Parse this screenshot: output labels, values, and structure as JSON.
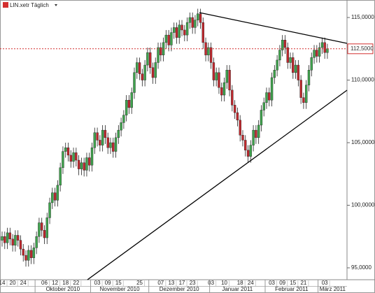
{
  "chart_data": {
    "type": "candlestick",
    "title": "LIN.xetr Täglich",
    "up_color": "#3fa34d",
    "down_color": "#c0282d",
    "ylim": [
      94.05,
      116.4
    ],
    "yticks": [
      {
        "value": 95,
        "label": "95,0000"
      },
      {
        "value": 100,
        "label": "100,0000"
      },
      {
        "value": 105,
        "label": "105,0000"
      },
      {
        "value": 110,
        "label": "110,0000"
      },
      {
        "value": 115,
        "label": "115,0000"
      }
    ],
    "last_price": {
      "value": 112.5,
      "label": "112,5000"
    },
    "categories": [
      "14",
      null,
      null,
      null,
      "20",
      null,
      null,
      null,
      "24",
      null,
      null,
      null,
      null,
      null,
      null,
      null,
      "06",
      null,
      null,
      null,
      "12",
      null,
      null,
      null,
      "18",
      null,
      null,
      null,
      "22",
      null,
      null,
      null,
      null,
      null,
      null,
      null,
      "03",
      null,
      null,
      null,
      "09",
      null,
      null,
      null,
      "15",
      null,
      null,
      null,
      null,
      null,
      null,
      null,
      "25",
      null,
      null,
      null,
      null,
      null,
      null,
      null,
      "07",
      null,
      null,
      null,
      "13",
      null,
      null,
      null,
      "17",
      null,
      null,
      null,
      "23",
      null,
      null,
      null,
      null,
      null,
      null,
      "03",
      null,
      null,
      null,
      null,
      "10",
      null,
      null,
      null,
      null,
      null,
      "18",
      null,
      null,
      null,
      "24",
      null,
      null,
      null,
      null,
      null,
      null,
      null,
      "03",
      null,
      null,
      null,
      "09",
      null,
      null,
      null,
      "15",
      null,
      null,
      null,
      "21",
      null,
      null,
      null,
      null,
      null,
      null,
      null,
      "03",
      null
    ],
    "months": [
      {
        "value": 13,
        "label": "Oktober 2010"
      },
      {
        "value": 34,
        "label": "November 2010"
      },
      {
        "value": 56,
        "label": "Dezember 2010"
      },
      {
        "value": 79,
        "label": "Januar 2011"
      },
      {
        "value": 100,
        "label": "Februar 2011"
      },
      {
        "value": 120,
        "label": "März 2011"
      }
    ],
    "open": [
      97.2,
      97.5,
      97.0,
      97.8,
      97.3,
      96.8,
      97.6,
      97.2,
      96.5,
      96.0,
      95.6,
      96.4,
      95.8,
      96.6,
      97.5,
      98.6,
      98.0,
      97.4,
      99.0,
      100.2,
      101.0,
      100.4,
      101.6,
      103.0,
      104.3,
      104.6,
      104.0,
      103.5,
      104.2,
      103.6,
      102.9,
      103.4,
      102.8,
      103.8,
      103.2,
      104.6,
      105.8,
      105.2,
      104.8,
      106.0,
      105.4,
      104.6,
      105.0,
      104.3,
      105.4,
      106.0,
      106.6,
      107.2,
      108.4,
      107.8,
      109.0,
      110.6,
      111.4,
      110.5,
      110.0,
      111.2,
      112.2,
      111.0,
      110.2,
      111.4,
      112.6,
      112.0,
      113.0,
      113.6,
      112.8,
      113.8,
      114.2,
      113.4,
      114.4,
      114.0,
      113.6,
      114.6,
      115.0,
      114.2,
      114.8,
      115.3,
      114.6,
      113.0,
      112.0,
      112.6,
      111.4,
      110.0,
      110.6,
      109.4,
      108.8,
      109.8,
      110.8,
      109.2,
      108.0,
      107.4,
      106.8,
      105.6,
      105.2,
      104.4,
      103.9,
      104.8,
      106.0,
      105.4,
      106.4,
      107.6,
      108.2,
      109.0,
      108.4,
      110.2,
      110.8,
      111.6,
      112.4,
      113.2,
      112.6,
      111.4,
      111.8,
      110.6,
      111.2,
      110.0,
      108.6,
      108.2,
      109.6,
      110.8,
      111.8,
      112.4,
      111.9,
      112.6,
      113.0,
      112.2
    ],
    "high": [
      97.9,
      97.9,
      98.2,
      98.2,
      97.7,
      98.0,
      98.0,
      97.6,
      96.9,
      96.4,
      96.8,
      96.8,
      97.0,
      97.9,
      99.0,
      99.0,
      98.4,
      99.4,
      100.6,
      101.4,
      101.4,
      102.0,
      103.4,
      104.7,
      105.0,
      105.0,
      104.4,
      104.6,
      104.6,
      104.0,
      103.8,
      103.8,
      104.2,
      104.2,
      105.0,
      106.2,
      106.2,
      105.6,
      106.4,
      106.4,
      105.8,
      105.4,
      105.4,
      105.8,
      106.4,
      107.0,
      107.6,
      108.8,
      108.8,
      109.4,
      111.0,
      111.8,
      111.8,
      110.9,
      111.6,
      112.6,
      112.6,
      111.4,
      111.8,
      113.0,
      113.0,
      113.4,
      114.0,
      114.0,
      114.2,
      114.6,
      114.6,
      114.8,
      114.8,
      114.4,
      115.0,
      115.4,
      115.4,
      115.2,
      115.7,
      115.7,
      115.0,
      113.4,
      113.0,
      113.0,
      111.8,
      111.0,
      111.0,
      109.8,
      110.2,
      111.2,
      111.2,
      109.6,
      108.4,
      107.8,
      107.2,
      106.0,
      105.6,
      104.8,
      105.2,
      106.4,
      106.4,
      106.8,
      108.0,
      108.6,
      109.4,
      109.4,
      110.6,
      111.2,
      112.0,
      112.8,
      113.6,
      113.6,
      113.0,
      112.2,
      112.2,
      111.6,
      111.6,
      110.4,
      109.0,
      110.0,
      111.2,
      112.2,
      112.8,
      112.8,
      113.0,
      113.4,
      113.4,
      112.9
    ],
    "low": [
      96.7,
      96.5,
      96.5,
      96.8,
      96.3,
      96.3,
      96.7,
      96.0,
      95.5,
      95.1,
      95.1,
      95.3,
      95.3,
      96.1,
      97.0,
      97.5,
      96.9,
      96.9,
      98.5,
      99.7,
      99.9,
      99.9,
      101.1,
      102.5,
      103.8,
      103.5,
      103.0,
      103.0,
      103.1,
      102.4,
      102.4,
      102.3,
      102.3,
      102.7,
      102.7,
      104.1,
      104.7,
      104.3,
      104.3,
      104.9,
      104.1,
      104.1,
      103.8,
      103.8,
      104.9,
      105.5,
      106.1,
      106.7,
      107.3,
      107.3,
      108.5,
      110.1,
      110.0,
      109.5,
      109.5,
      110.7,
      110.5,
      109.7,
      109.7,
      110.9,
      111.5,
      111.5,
      112.5,
      112.3,
      112.3,
      113.3,
      112.9,
      112.9,
      113.5,
      113.1,
      113.1,
      114.1,
      113.7,
      113.7,
      114.3,
      114.1,
      112.5,
      111.5,
      111.5,
      110.9,
      109.5,
      109.5,
      108.9,
      108.3,
      108.3,
      109.3,
      108.7,
      107.5,
      106.9,
      106.3,
      105.1,
      104.7,
      103.9,
      103.4,
      103.4,
      104.3,
      104.9,
      104.9,
      105.9,
      107.1,
      107.7,
      107.9,
      107.9,
      109.7,
      110.3,
      111.1,
      111.9,
      112.1,
      110.9,
      110.9,
      110.1,
      110.1,
      109.5,
      108.1,
      107.7,
      107.7,
      109.1,
      110.3,
      111.3,
      111.4,
      111.4,
      112.1,
      111.7,
      111.7
    ],
    "close": [
      97.5,
      97.0,
      97.8,
      97.3,
      96.8,
      97.6,
      97.2,
      96.5,
      96.0,
      95.6,
      96.4,
      95.8,
      96.6,
      97.5,
      98.6,
      98.0,
      97.4,
      99.0,
      100.2,
      101.0,
      100.4,
      101.6,
      103.0,
      104.3,
      104.6,
      104.0,
      103.5,
      104.2,
      103.6,
      102.9,
      103.4,
      102.8,
      103.8,
      103.2,
      104.6,
      105.8,
      105.2,
      104.8,
      106.0,
      105.4,
      104.6,
      105.0,
      104.3,
      105.4,
      106.0,
      106.6,
      107.2,
      108.4,
      107.8,
      109.0,
      110.6,
      111.4,
      110.5,
      110.0,
      111.2,
      112.2,
      111.0,
      110.2,
      111.4,
      112.6,
      112.0,
      113.0,
      113.6,
      112.8,
      113.8,
      114.2,
      113.4,
      114.4,
      114.0,
      113.6,
      114.6,
      115.0,
      114.2,
      114.8,
      115.3,
      114.6,
      113.0,
      112.0,
      112.6,
      111.4,
      110.0,
      110.6,
      109.4,
      108.8,
      109.8,
      110.8,
      109.2,
      108.0,
      107.4,
      106.8,
      105.6,
      105.2,
      104.4,
      103.9,
      104.8,
      106.0,
      105.4,
      106.4,
      107.6,
      108.2,
      109.0,
      108.4,
      110.2,
      110.8,
      111.6,
      112.4,
      113.2,
      112.6,
      111.4,
      111.8,
      110.6,
      111.2,
      110.0,
      108.6,
      108.2,
      109.6,
      110.8,
      111.8,
      112.4,
      111.9,
      112.6,
      113.0,
      112.2,
      112.5
    ]
  }
}
